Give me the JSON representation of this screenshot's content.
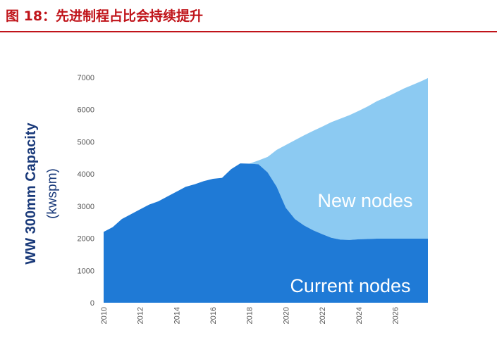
{
  "figure_title": "图 18：先进制程占比会持续提升",
  "chart_data": {
    "type": "area",
    "title": "",
    "ylabel": "WW 300mm Capacity",
    "ylabel_unit": "(kwspm)",
    "xlabel": "",
    "ylim": [
      0,
      7000
    ],
    "xlim": [
      2010,
      2027.8
    ],
    "yticks": [
      0,
      1000,
      2000,
      3000,
      4000,
      5000,
      6000,
      7000
    ],
    "xticks": [
      "2010",
      "2012",
      "2014",
      "2016",
      "2018",
      "2020",
      "2022",
      "2024",
      "2026"
    ],
    "grid": false,
    "stacked": true,
    "x": [
      2010,
      2010.5,
      2011,
      2011.5,
      2012,
      2012.5,
      2013,
      2013.5,
      2014,
      2014.5,
      2015,
      2015.5,
      2016,
      2016.5,
      2017,
      2017.5,
      2018,
      2018.5,
      2019,
      2019.5,
      2020,
      2020.5,
      2021,
      2021.5,
      2022,
      2022.5,
      2023,
      2023.5,
      2024,
      2024.5,
      2025,
      2025.5,
      2026,
      2026.5,
      2027,
      2027.5,
      2027.8
    ],
    "series": [
      {
        "name": "Current nodes",
        "color": "#1f7ad6",
        "label_color": "#ffffff",
        "values": [
          2200,
          2350,
          2600,
          2750,
          2900,
          3050,
          3150,
          3300,
          3450,
          3600,
          3680,
          3780,
          3850,
          3880,
          4150,
          4330,
          4320,
          4300,
          4050,
          3600,
          2950,
          2600,
          2400,
          2250,
          2130,
          2020,
          1960,
          1950,
          1970,
          1980,
          1990,
          1990,
          1990,
          1990,
          1990,
          1990,
          1990
        ]
      },
      {
        "name": "New nodes",
        "color": "#8ccaf2",
        "label_color": "#ffffff",
        "values": [
          0,
          0,
          0,
          0,
          0,
          0,
          0,
          0,
          0,
          0,
          0,
          0,
          0,
          0,
          0,
          0,
          0,
          120,
          480,
          1150,
          1950,
          2450,
          2800,
          3090,
          3340,
          3590,
          3760,
          3880,
          3990,
          4120,
          4270,
          4390,
          4530,
          4670,
          4790,
          4910,
          4990
        ]
      }
    ]
  }
}
